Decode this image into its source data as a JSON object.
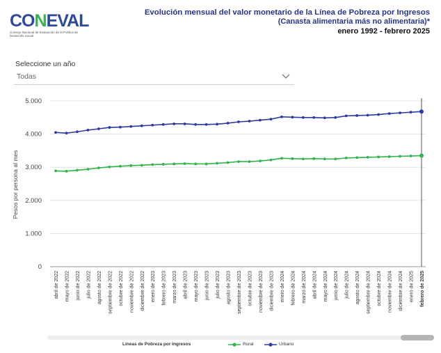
{
  "logo": {
    "word": "CONEVAL",
    "subtitle": "Consejo Nacional de Evaluación de la Política de Desarrollo Social"
  },
  "header": {
    "title_line1": "Evolución mensual del valor monetario de la Línea de Pobreza por Ingresos",
    "title_line2": "(Canasta alimentaria más no alimentaria)*",
    "period": "enero 1992 - febrero 2025"
  },
  "year_selector": {
    "label": "Seleccione un año",
    "value": "Todas"
  },
  "chart_data": {
    "type": "line",
    "ylabel": "Pesos por persona al mes",
    "ylim": [
      0,
      5000
    ],
    "yticks": [
      "0",
      "1.000",
      "2.000",
      "3.000",
      "4.000",
      "5.000"
    ],
    "grid": true,
    "legend_position": "bottom",
    "legend_title": "Líneas de Pobreza por Ingresos",
    "categories": [
      "abril de 2022",
      "mayo de 2022",
      "junio de 2022",
      "julio de 2022",
      "agosto de 2022",
      "septiembre de 2022",
      "octubre de 2022",
      "noviembre de 2022",
      "diciembre de 2022",
      "enero de 2023",
      "febrero de 2023",
      "marzo de 2023",
      "abril de 2023",
      "mayo de 2023",
      "junio de 2023",
      "julio de 2023",
      "agosto de 2023",
      "septiembre de 2023",
      "octubre de 2023",
      "noviembre de 2023",
      "diciembre de 2023",
      "enero de 2024",
      "febrero de 2024",
      "marzo de 2024",
      "abril de 2024",
      "mayo de 2024",
      "junio de 2024",
      "julio de 2024",
      "agosto de 2024",
      "septiembre de 2024",
      "octubre de 2024",
      "noviembre de 2024",
      "diciembre de 2024",
      "enero de 2025",
      "febrero de 2025"
    ],
    "highlighted_category": "febrero de 2025",
    "series": [
      {
        "name": "Rural",
        "color": "#2fb34a",
        "values": [
          2890,
          2880,
          2910,
          2940,
          2980,
          3010,
          3030,
          3050,
          3060,
          3080,
          3090,
          3100,
          3110,
          3100,
          3100,
          3120,
          3140,
          3170,
          3170,
          3190,
          3220,
          3270,
          3260,
          3250,
          3260,
          3250,
          3250,
          3280,
          3290,
          3300,
          3310,
          3320,
          3330,
          3340,
          3350
        ]
      },
      {
        "name": "Urbano",
        "color": "#2b3a9e",
        "values": [
          4050,
          4030,
          4070,
          4120,
          4160,
          4200,
          4210,
          4230,
          4250,
          4270,
          4290,
          4310,
          4310,
          4290,
          4290,
          4300,
          4330,
          4370,
          4390,
          4420,
          4450,
          4520,
          4510,
          4500,
          4500,
          4490,
          4500,
          4550,
          4560,
          4570,
          4590,
          4620,
          4640,
          4660,
          4680
        ]
      }
    ]
  }
}
